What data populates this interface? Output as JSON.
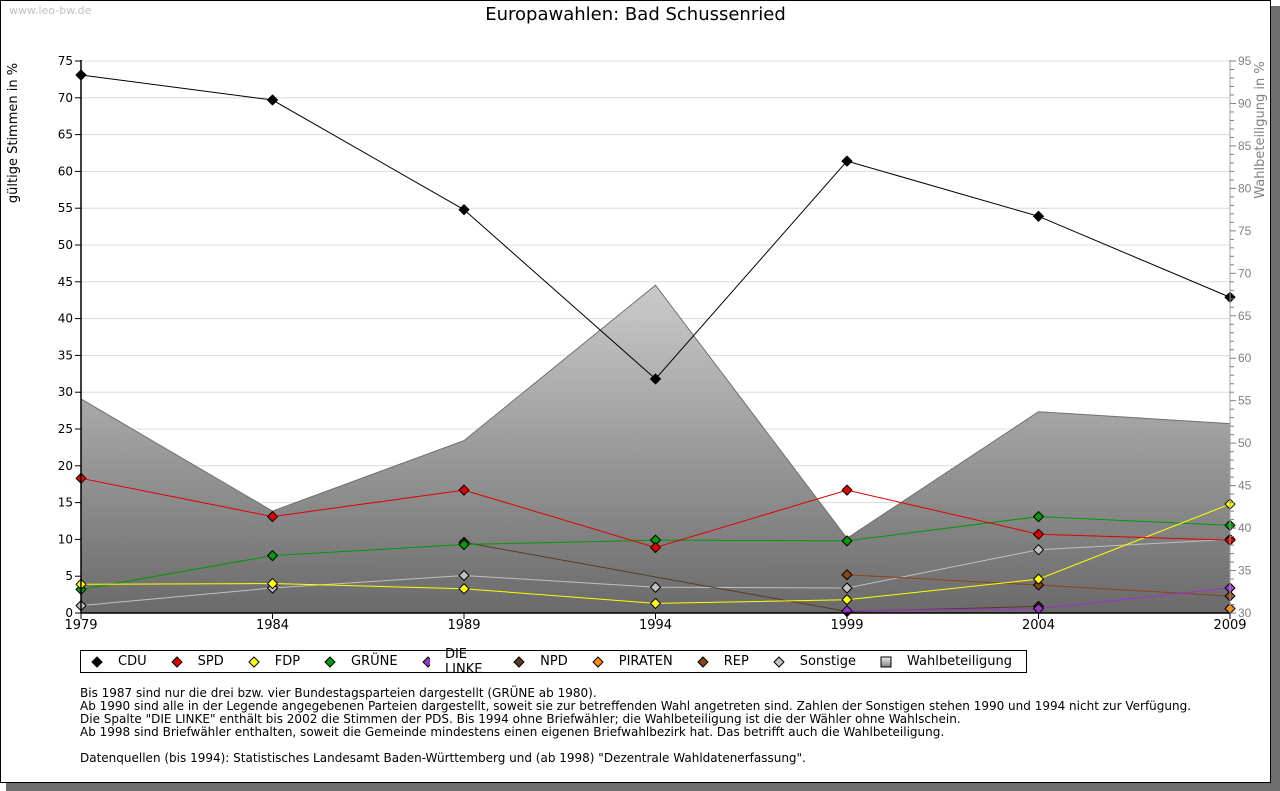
{
  "watermark": "www.leo-bw.de",
  "chart_data": {
    "type": "line",
    "title": "Europawahlen: Bad Schussenried",
    "ylabel": "gültige Stimmen in %",
    "y2label": "Wahlbeteiligung in %",
    "x": [
      1979,
      1984,
      1989,
      1994,
      1999,
      2004,
      2009
    ],
    "x_tick_labels": [
      "1979",
      "1984",
      "1989",
      "1994",
      "1999",
      "2004",
      "2009"
    ],
    "ylim": [
      0,
      75
    ],
    "y_ticks": [
      "0",
      "5",
      "10",
      "15",
      "20",
      "25",
      "30",
      "35",
      "40",
      "45",
      "50",
      "55",
      "60",
      "65",
      "70",
      "75"
    ],
    "y2lim": [
      30,
      95
    ],
    "y2_ticks": [
      "30",
      "35",
      "40",
      "45",
      "50",
      "55",
      "60",
      "65",
      "70",
      "75",
      "80",
      "85",
      "90",
      "95"
    ],
    "grid": true,
    "legend_position": "bottom",
    "series": [
      {
        "name": "CDU",
        "color": "#000000",
        "values": [
          73.1,
          69.7,
          54.8,
          31.8,
          61.4,
          53.9,
          42.9
        ]
      },
      {
        "name": "SPD",
        "color": "#e00000",
        "values": [
          18.3,
          13.1,
          16.7,
          8.9,
          16.7,
          10.7,
          9.9
        ]
      },
      {
        "name": "FDP",
        "color": "#ffff00",
        "values": [
          3.9,
          4.0,
          3.3,
          1.3,
          1.8,
          4.6,
          14.8
        ]
      },
      {
        "name": "GRÜNE",
        "color": "#009900",
        "values": [
          3.2,
          7.8,
          9.3,
          9.9,
          9.8,
          13.1,
          11.9
        ]
      },
      {
        "name": "DIE LINKE",
        "color": "#9933cc",
        "values": [
          null,
          null,
          null,
          null,
          0.3,
          0.6,
          3.4
        ]
      },
      {
        "name": "NPD",
        "color": "#5a3a22",
        "values": [
          null,
          null,
          9.6,
          null,
          0.2,
          0.9,
          null
        ]
      },
      {
        "name": "PIRATEN",
        "color": "#ff8800",
        "values": [
          null,
          null,
          null,
          null,
          null,
          null,
          0.6
        ]
      },
      {
        "name": "REP",
        "color": "#8b4513",
        "values": [
          null,
          null,
          null,
          null,
          5.2,
          3.8,
          2.3
        ]
      },
      {
        "name": "Sonstige",
        "color": "#c0c0c0",
        "values": [
          1.0,
          3.4,
          5.1,
          3.5,
          3.4,
          8.6,
          10.0
        ]
      }
    ],
    "area": {
      "name": "Wahlbeteiligung",
      "axis": "right",
      "values": [
        55.2,
        42.0,
        50.3,
        68.6,
        38.8,
        53.7,
        52.3
      ]
    }
  },
  "notes": [
    "Bis 1987 sind nur die drei bzw. vier Bundestagsparteien dargestellt (GRÜNE ab 1980).",
    "Ab 1990 sind alle in der Legende angegebenen Parteien dargestellt, soweit sie zur betreffenden Wahl angetreten sind. Zahlen der Sonstigen stehen 1990 und 1994 nicht zur Verfügung.",
    "Die Spalte \"DIE LINKE\" enthält bis 2002 die Stimmen der PDS. Bis 1994 ohne Briefwähler; die Wahlbeteiligung ist die der Wähler ohne Wahlschein.",
    "Ab 1998 sind Briefwähler enthalten, soweit die Gemeinde mindestens einen eigenen Briefwahlbezirk hat. Das betrifft auch die Wahlbeteiligung."
  ],
  "source": "Datenquellen (bis 1994): Statistisches Landesamt Baden-Württemberg und (ab 1998) \"Dezentrale Wahldatenerfassung\"."
}
